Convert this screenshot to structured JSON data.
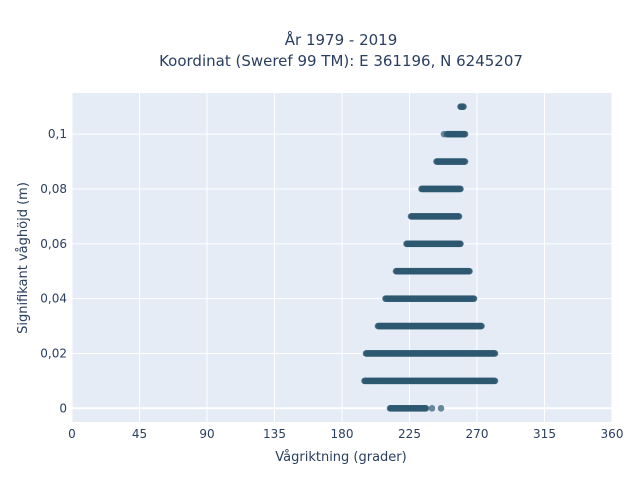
{
  "chart_data": {
    "type": "scatter",
    "title": "År 1979 - 2019",
    "subtitle": "Koordinat (Sweref 99 TM): E 361196, N 6245207",
    "xlabel": "Vågriktning (grader)",
    "ylabel": "Signifikant våghöjd (m)",
    "xlim": [
      0,
      360
    ],
    "ylim": [
      -0.005,
      0.115
    ],
    "x_ticks": [
      0,
      45,
      90,
      135,
      180,
      225,
      270,
      315,
      360
    ],
    "y_ticks": [
      0,
      0.02,
      0.04,
      0.06,
      0.08,
      0.1
    ],
    "x_tick_labels": [
      "0",
      "45",
      "90",
      "135",
      "180",
      "225",
      "270",
      "315",
      "360"
    ],
    "y_tick_labels": [
      "0",
      "0,02",
      "0,04",
      "0,06",
      "0,08",
      "0,1"
    ],
    "grid": true,
    "background": "#e5ecf6",
    "marker_color": "#2e5870",
    "bands": [
      {
        "y": 0.0,
        "x_min": 212,
        "x_max": 236,
        "outliers": [
          240,
          246
        ]
      },
      {
        "y": 0.01,
        "x_min": 195,
        "x_max": 282,
        "outliers": []
      },
      {
        "y": 0.02,
        "x_min": 196,
        "x_max": 282,
        "outliers": []
      },
      {
        "y": 0.03,
        "x_min": 204,
        "x_max": 273,
        "outliers": []
      },
      {
        "y": 0.04,
        "x_min": 209,
        "x_max": 268,
        "outliers": []
      },
      {
        "y": 0.05,
        "x_min": 216,
        "x_max": 265,
        "outliers": []
      },
      {
        "y": 0.06,
        "x_min": 223,
        "x_max": 259,
        "outliers": []
      },
      {
        "y": 0.07,
        "x_min": 226,
        "x_max": 258,
        "outliers": []
      },
      {
        "y": 0.08,
        "x_min": 233,
        "x_max": 259,
        "outliers": []
      },
      {
        "y": 0.09,
        "x_min": 243,
        "x_max": 262,
        "outliers": []
      },
      {
        "y": 0.1,
        "x_min": 250,
        "x_max": 262,
        "outliers": [
          248
        ]
      },
      {
        "y": 0.11,
        "x_min": 259,
        "x_max": 261,
        "outliers": []
      }
    ]
  }
}
